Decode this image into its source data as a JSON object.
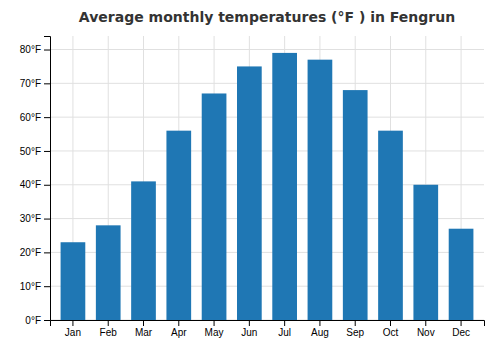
{
  "chart_data": {
    "type": "bar",
    "title": "Average monthly temperatures (°F ) in Fengrun",
    "categories": [
      "Jan",
      "Feb",
      "Mar",
      "Apr",
      "May",
      "Jun",
      "Jul",
      "Aug",
      "Sep",
      "Oct",
      "Nov",
      "Dec"
    ],
    "values": [
      23,
      28,
      41,
      56,
      67,
      75,
      79,
      77,
      68,
      56,
      40,
      27
    ],
    "ylim": [
      0,
      84
    ],
    "yticks": [
      {
        "value": 0,
        "label": "0°F"
      },
      {
        "value": 10,
        "label": "10°F"
      },
      {
        "value": 20,
        "label": "20°F"
      },
      {
        "value": 30,
        "label": "30°F"
      },
      {
        "value": 40,
        "label": "40°F"
      },
      {
        "value": 50,
        "label": "50°F"
      },
      {
        "value": 60,
        "label": "60°F"
      },
      {
        "value": 70,
        "label": "70°F"
      },
      {
        "value": 80,
        "label": "80°F"
      }
    ],
    "grid": true
  }
}
